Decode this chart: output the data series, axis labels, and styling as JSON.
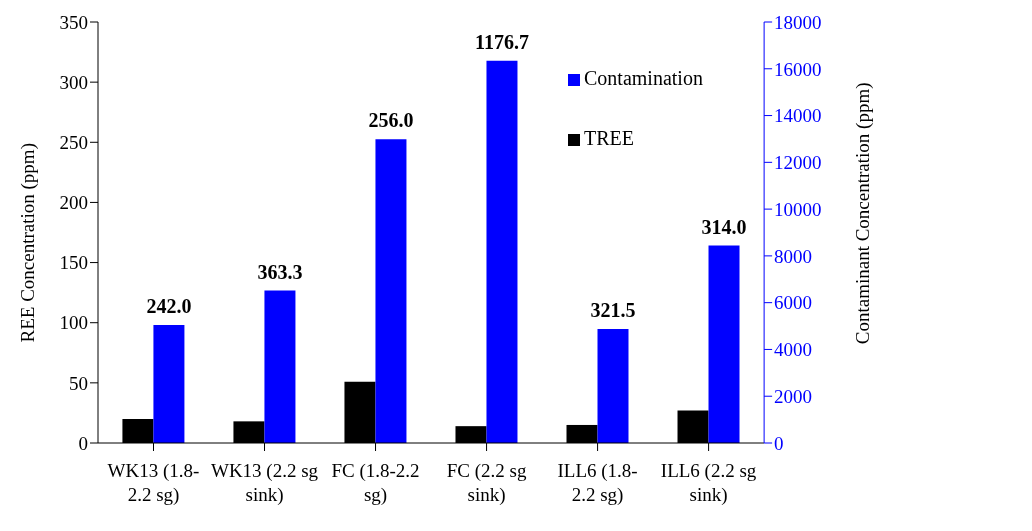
{
  "chart_data": {
    "type": "bar",
    "categories": [
      "WK13 (1.8-2.2 sg)",
      "WK13 (2.2 sg sink)",
      "FC (1.8-2.2 sg)",
      "FC (2.2 sg sink)",
      "ILL6 (1.8-2.2 sg)",
      "ILL6 (2.2 sg sink)"
    ],
    "series": [
      {
        "name": "TREE",
        "color": "#000000",
        "values": [
          20,
          18,
          51,
          14,
          15,
          27
        ]
      },
      {
        "name": "Contamination",
        "color": "#0000ff",
        "axis": "y2",
        "values": [
          5040,
          6520,
          12990,
          16340,
          4870,
          8440
        ]
      }
    ],
    "ylabel": "REE Concentration (ppm)",
    "y2label": "Contaminant Concentration (ppm)",
    "ylim": [
      0,
      350
    ],
    "yticks": [
      0,
      50,
      100,
      150,
      200,
      250,
      300,
      350
    ],
    "y2lim": [
      0,
      18000
    ],
    "y2ticks": [
      0,
      2000,
      4000,
      6000,
      8000,
      10000,
      12000,
      14000,
      16000,
      18000
    ],
    "annotations": [
      "242.0",
      "363.3",
      "256.0",
      "1176.7",
      "321.5",
      "314.0"
    ],
    "legend": "top right",
    "grid": false
  }
}
